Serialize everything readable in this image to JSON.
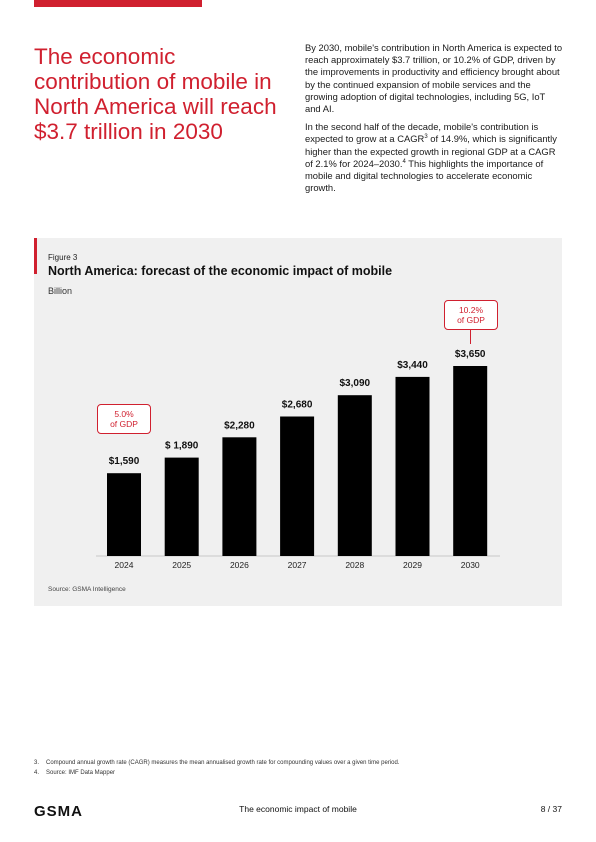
{
  "headline": "The economic contribution of mobile in North America will reach $3.7 trillion in 2030",
  "intro": {
    "p1": "By 2030, mobile's contribution in North America is expected to reach approximately $3.7 trillion, or 10.2% of GDP, driven by the improvements in productivity and efficiency brought about by the continued expansion of mobile services and the growing adoption of digital technologies, including 5G, IoT and AI.",
    "p2_a": "In the second half of the decade, mobile's contribution is expected to grow at a CAGR",
    "p2_sup1": "3",
    "p2_b": " of 14.9%, which is significantly higher than the expected growth in regional GDP at a CAGR of 2.1% for 2024–2030.",
    "p2_sup2": "4",
    "p2_c": " This highlights the importance of mobile and digital technologies to accelerate economic growth."
  },
  "figure": {
    "label": "Figure 3",
    "title": "North America: forecast of the economic impact of mobile",
    "unit": "Billion",
    "source": "Source: GSMA Intelligence",
    "callout_2024": {
      "line1": "5.0%",
      "line2": "of GDP"
    },
    "callout_2030": {
      "line1": "10.2%",
      "line2": "of GDP"
    }
  },
  "chart_data": {
    "type": "bar",
    "title": "North America: forecast of the economic impact of mobile",
    "ylabel": "Billion",
    "categories": [
      "2024",
      "2025",
      "2026",
      "2027",
      "2028",
      "2029",
      "2030"
    ],
    "values": [
      1590,
      1890,
      2280,
      2680,
      3090,
      3440,
      3650
    ],
    "value_labels": [
      "$1,590",
      "$ 1,890",
      "$2,280",
      "$2,680",
      "$3,090",
      "$3,440",
      "$3,650"
    ],
    "bar_color": "#000000",
    "grid": false,
    "annotations": [
      {
        "category": "2024",
        "text": "5.0% of GDP"
      },
      {
        "category": "2030",
        "text": "10.2% of GDP"
      }
    ]
  },
  "footnotes": [
    {
      "num": "3.",
      "text": "Compound annual growth rate (CAGR) measures the mean annualised growth rate for compounding values over a given time period."
    },
    {
      "num": "4.",
      "text": "Source: IMF Data Mapper"
    }
  ],
  "footer": {
    "logo": "GSMA",
    "title": "The economic impact of mobile",
    "page": "8 / 37"
  },
  "colors": {
    "accent": "#d0202f",
    "panel": "#f0f0f0"
  }
}
